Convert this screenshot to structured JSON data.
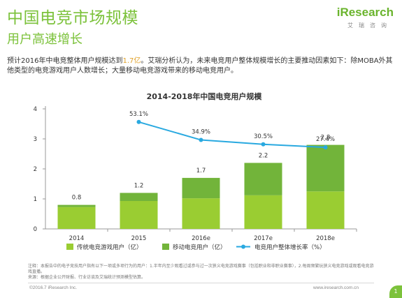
{
  "header": {
    "title": "中国电竞市场规模",
    "subtitle": "用户高速增长",
    "logo_main": "iResearch",
    "logo_sub": "艾瑞咨询"
  },
  "description": {
    "part1": "预计2016年中电竞整体用户规模达到",
    "highlight": "1.7亿",
    "part2": "。艾瑞分析认为，未来电竞用户整体规模增长的主要推动因素如下：除MOBA外其他类型的电竞游戏用户人数增长；大量移动电竞游戏带来的移动电竞用户。"
  },
  "chart_data": {
    "type": "bar",
    "title": "2014-2018年中国电竞用户规模",
    "categories": [
      "2014",
      "2015",
      "2016e",
      "2017e",
      "2018e"
    ],
    "ylim": [
      0,
      4
    ],
    "yticks": [
      0,
      1,
      2,
      3,
      4
    ],
    "stacked": true,
    "series": [
      {
        "name": "传统电竞游戏用户（亿）",
        "values": [
          0.73,
          0.93,
          1.02,
          1.12,
          1.25
        ],
        "color": "#9acd32"
      },
      {
        "name": "移动电竞用户（亿）",
        "values": [
          0.07,
          0.27,
          0.68,
          1.08,
          1.55
        ],
        "color": "#72b43a"
      }
    ],
    "totals": [
      "0.8",
      "1.2",
      "1.7",
      "2.2",
      "2.8"
    ],
    "growth_series": {
      "name": "电竞用户整体增长率（%）",
      "categories": [
        "2015",
        "2016e",
        "2017e",
        "2018e"
      ],
      "values": [
        53.1,
        34.9,
        30.5,
        27.4
      ],
      "labels": [
        "53.1%",
        "34.9%",
        "30.5%",
        "27.4%"
      ],
      "color": "#29a9e0"
    },
    "grid": false,
    "legend_position": "bottom"
  },
  "footer": {
    "note": "注释：本报告中的电子竞技用户指有以下一项或多项行为的用户：1.半年内至少观看过或参与过一次狭义电竞游戏赛事（包括职业和非职业赛事），2.每周频繁玩狭义电竞游戏或观看电竞游戏直播。",
    "source": "来源：根据企业公开财报、行业访谈及艾瑞统计预测模型估算。",
    "copyright": "©2016.7 iResearch Inc.",
    "website": "www.iresearch.com.cn",
    "page_number": "1"
  }
}
